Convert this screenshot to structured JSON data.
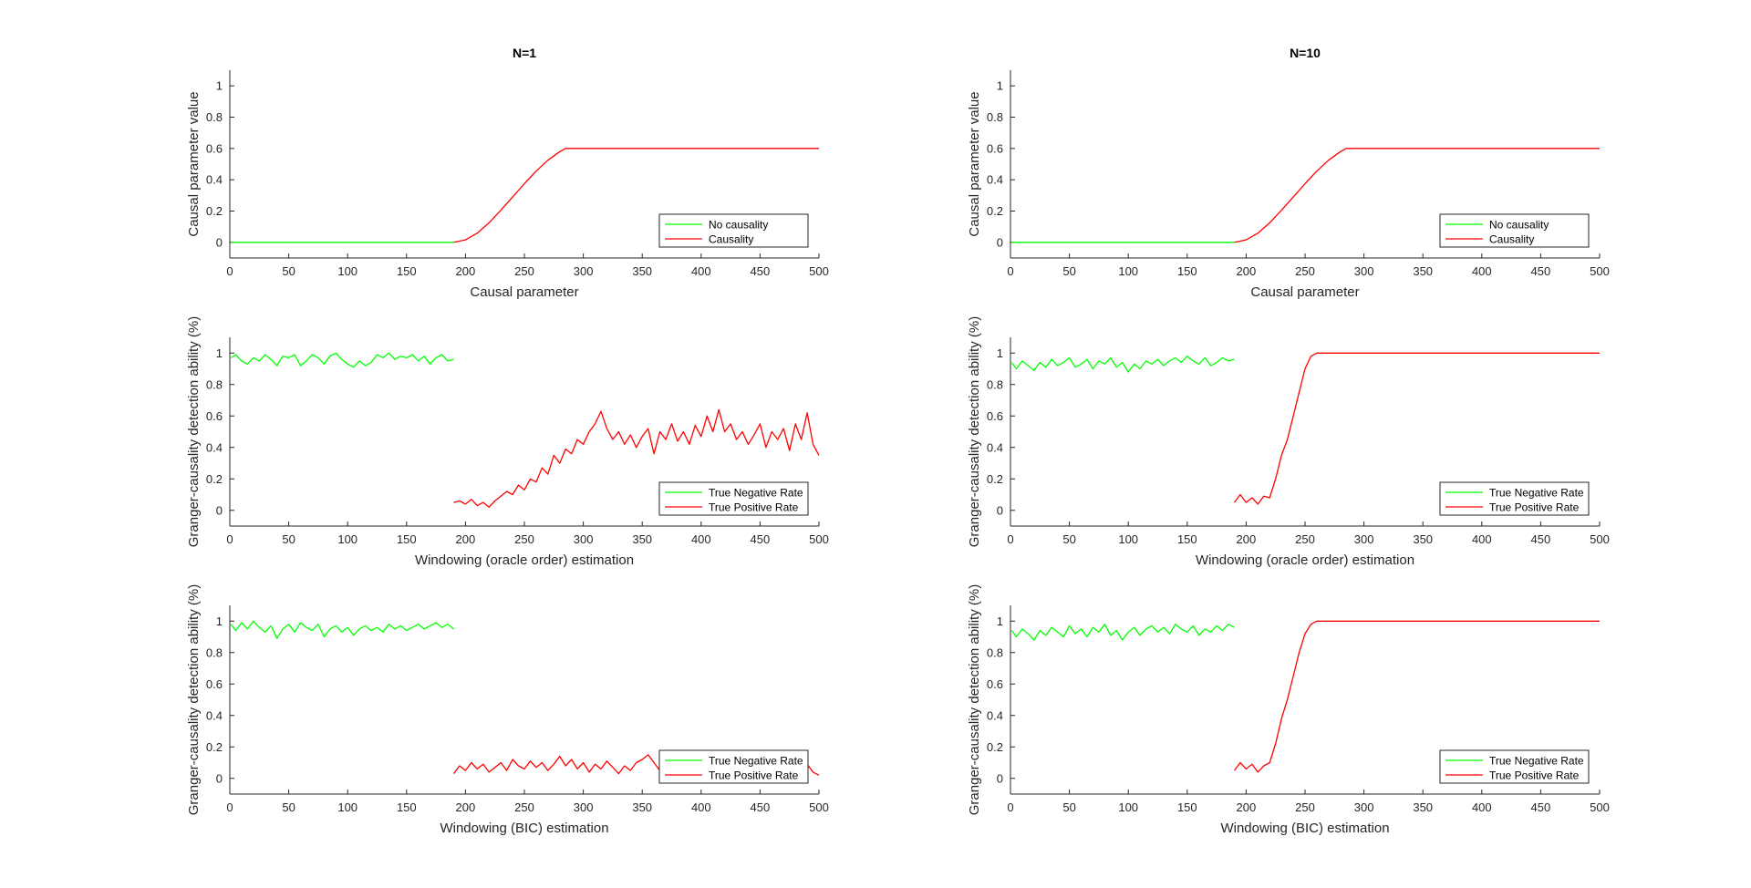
{
  "chart_data": [
    {
      "id": "a1",
      "type": "line",
      "title": "N=1",
      "xlabel": "Causal parameter",
      "ylabel": "Causal parameter value",
      "xlim": [
        0,
        500
      ],
      "ylim": [
        -0.1,
        1.1
      ],
      "xticks": [
        0,
        50,
        100,
        150,
        200,
        250,
        300,
        350,
        400,
        450,
        500
      ],
      "yticks": [
        0,
        0.2,
        0.4,
        0.6,
        0.8,
        1
      ],
      "legend_placement": "bottom-right",
      "grid": false,
      "series": [
        {
          "name": "No causality",
          "color": "#00ff00",
          "x": [
            1,
            50,
            100,
            150,
            190
          ],
          "y": [
            0,
            0,
            0,
            0,
            0
          ]
        },
        {
          "name": "Causality",
          "color": "#ff0000",
          "x": [
            190,
            200,
            210,
            220,
            230,
            240,
            250,
            260,
            270,
            280,
            285,
            300,
            350,
            400,
            450,
            500
          ],
          "y": [
            0,
            0.016,
            0.059,
            0.125,
            0.205,
            0.29,
            0.375,
            0.455,
            0.525,
            0.58,
            0.6,
            0.6,
            0.6,
            0.6,
            0.6,
            0.6
          ]
        }
      ]
    },
    {
      "id": "b1",
      "type": "line",
      "title": "N=10",
      "xlabel": "Causal parameter",
      "ylabel": "Causal parameter value",
      "xlim": [
        0,
        500
      ],
      "ylim": [
        -0.1,
        1.1
      ],
      "xticks": [
        0,
        50,
        100,
        150,
        200,
        250,
        300,
        350,
        400,
        450,
        500
      ],
      "yticks": [
        0,
        0.2,
        0.4,
        0.6,
        0.8,
        1
      ],
      "legend_placement": "bottom-right",
      "grid": false,
      "series": [
        {
          "name": "No causality",
          "color": "#00ff00",
          "x": [
            1,
            50,
            100,
            150,
            190
          ],
          "y": [
            0,
            0,
            0,
            0,
            0
          ]
        },
        {
          "name": "Causality",
          "color": "#ff0000",
          "x": [
            190,
            200,
            210,
            220,
            230,
            240,
            250,
            260,
            270,
            280,
            285,
            300,
            350,
            400,
            450,
            500
          ],
          "y": [
            0,
            0.016,
            0.059,
            0.125,
            0.205,
            0.29,
            0.375,
            0.455,
            0.525,
            0.58,
            0.6,
            0.6,
            0.6,
            0.6,
            0.6,
            0.6
          ]
        }
      ]
    },
    {
      "id": "a2",
      "type": "line",
      "title": "",
      "xlabel": "Windowing (oracle order) estimation",
      "ylabel": "Granger-causality detection ability (%)",
      "xlim": [
        0,
        500
      ],
      "ylim": [
        -0.1,
        1.1
      ],
      "xticks": [
        0,
        50,
        100,
        150,
        200,
        250,
        300,
        350,
        400,
        450,
        500
      ],
      "yticks": [
        0,
        0.2,
        0.4,
        0.6,
        0.8,
        1
      ],
      "legend_placement": "bottom-right",
      "grid": false,
      "series": [
        {
          "name": "True Negative Rate",
          "color": "#00ff00",
          "x": [
            1,
            5,
            10,
            15,
            20,
            25,
            30,
            35,
            40,
            45,
            50,
            55,
            60,
            65,
            70,
            75,
            80,
            85,
            90,
            95,
            100,
            105,
            110,
            115,
            120,
            125,
            130,
            135,
            140,
            145,
            150,
            155,
            160,
            165,
            170,
            175,
            180,
            185,
            190
          ],
          "y": [
            0.97,
            0.99,
            0.95,
            0.93,
            0.97,
            0.95,
            0.99,
            0.96,
            0.92,
            0.98,
            0.97,
            0.99,
            0.92,
            0.95,
            0.99,
            0.97,
            0.93,
            0.98,
            1.0,
            0.96,
            0.93,
            0.91,
            0.95,
            0.92,
            0.94,
            0.99,
            0.97,
            1.0,
            0.96,
            0.98,
            0.97,
            0.99,
            0.95,
            0.98,
            0.93,
            0.97,
            0.99,
            0.95,
            0.96
          ]
        },
        {
          "name": "True Positive Rate",
          "color": "#ff0000",
          "x": [
            190,
            195,
            200,
            205,
            210,
            215,
            220,
            225,
            230,
            235,
            240,
            245,
            250,
            255,
            260,
            265,
            270,
            275,
            280,
            285,
            290,
            295,
            300,
            305,
            310,
            315,
            320,
            325,
            330,
            335,
            340,
            345,
            350,
            355,
            360,
            365,
            370,
            375,
            380,
            385,
            390,
            395,
            400,
            405,
            410,
            415,
            420,
            425,
            430,
            435,
            440,
            445,
            450,
            455,
            460,
            465,
            470,
            475,
            480,
            485,
            490,
            495,
            500
          ],
          "y": [
            0.05,
            0.06,
            0.04,
            0.07,
            0.03,
            0.05,
            0.02,
            0.06,
            0.09,
            0.12,
            0.1,
            0.16,
            0.13,
            0.2,
            0.18,
            0.27,
            0.23,
            0.35,
            0.3,
            0.39,
            0.36,
            0.45,
            0.42,
            0.5,
            0.55,
            0.63,
            0.52,
            0.45,
            0.5,
            0.42,
            0.48,
            0.4,
            0.47,
            0.52,
            0.36,
            0.5,
            0.45,
            0.55,
            0.44,
            0.5,
            0.42,
            0.54,
            0.47,
            0.6,
            0.5,
            0.64,
            0.5,
            0.55,
            0.45,
            0.5,
            0.42,
            0.48,
            0.55,
            0.4,
            0.5,
            0.45,
            0.52,
            0.38,
            0.55,
            0.45,
            0.62,
            0.42,
            0.35
          ]
        }
      ]
    },
    {
      "id": "b2",
      "type": "line",
      "title": "",
      "xlabel": "Windowing (oracle order) estimation",
      "ylabel": "Granger-causality detection ability (%)",
      "xlim": [
        0,
        500
      ],
      "ylim": [
        -0.1,
        1.1
      ],
      "xticks": [
        0,
        50,
        100,
        150,
        200,
        250,
        300,
        350,
        400,
        450,
        500
      ],
      "yticks": [
        0,
        0.2,
        0.4,
        0.6,
        0.8,
        1
      ],
      "legend_placement": "bottom-right",
      "grid": false,
      "series": [
        {
          "name": "True Negative Rate",
          "color": "#00ff00",
          "x": [
            1,
            5,
            10,
            15,
            20,
            25,
            30,
            35,
            40,
            45,
            50,
            55,
            60,
            65,
            70,
            75,
            80,
            85,
            90,
            95,
            100,
            105,
            110,
            115,
            120,
            125,
            130,
            135,
            140,
            145,
            150,
            155,
            160,
            165,
            170,
            175,
            180,
            185,
            190
          ],
          "y": [
            0.94,
            0.9,
            0.95,
            0.92,
            0.89,
            0.94,
            0.91,
            0.96,
            0.92,
            0.94,
            0.97,
            0.91,
            0.93,
            0.96,
            0.9,
            0.95,
            0.93,
            0.97,
            0.91,
            0.94,
            0.88,
            0.93,
            0.9,
            0.95,
            0.93,
            0.96,
            0.92,
            0.95,
            0.97,
            0.94,
            0.98,
            0.95,
            0.93,
            0.97,
            0.92,
            0.94,
            0.97,
            0.95,
            0.96
          ]
        },
        {
          "name": "True Positive Rate",
          "color": "#ff0000",
          "x": [
            190,
            195,
            200,
            205,
            210,
            215,
            220,
            225,
            230,
            235,
            240,
            245,
            250,
            255,
            260,
            280,
            300,
            350,
            400,
            450,
            500
          ],
          "y": [
            0.05,
            0.1,
            0.05,
            0.08,
            0.04,
            0.09,
            0.08,
            0.2,
            0.35,
            0.45,
            0.6,
            0.75,
            0.9,
            0.98,
            1.0,
            1.0,
            1.0,
            1.0,
            1.0,
            1.0,
            1.0
          ]
        }
      ]
    },
    {
      "id": "a3",
      "type": "line",
      "title": "",
      "xlabel": "Windowing (BIC) estimation",
      "ylabel": "Granger-causality detection ability (%)",
      "xlim": [
        0,
        500
      ],
      "ylim": [
        -0.1,
        1.1
      ],
      "xticks": [
        0,
        50,
        100,
        150,
        200,
        250,
        300,
        350,
        400,
        450,
        500
      ],
      "yticks": [
        0,
        0.2,
        0.4,
        0.6,
        0.8,
        1
      ],
      "legend_placement": "bottom-right",
      "grid": false,
      "series": [
        {
          "name": "True Negative Rate",
          "color": "#00ff00",
          "x": [
            1,
            5,
            10,
            15,
            20,
            25,
            30,
            35,
            40,
            45,
            50,
            55,
            60,
            65,
            70,
            75,
            80,
            85,
            90,
            95,
            100,
            105,
            110,
            115,
            120,
            125,
            130,
            135,
            140,
            145,
            150,
            155,
            160,
            165,
            170,
            175,
            180,
            185,
            190
          ],
          "y": [
            0.98,
            0.94,
            0.99,
            0.95,
            1.0,
            0.96,
            0.93,
            0.97,
            0.89,
            0.95,
            0.98,
            0.93,
            0.99,
            0.96,
            0.94,
            0.98,
            0.9,
            0.95,
            0.97,
            0.93,
            0.96,
            0.91,
            0.95,
            0.97,
            0.94,
            0.96,
            0.93,
            0.98,
            0.95,
            0.97,
            0.94,
            0.96,
            0.98,
            0.95,
            0.97,
            0.99,
            0.96,
            0.98,
            0.95
          ]
        },
        {
          "name": "True Positive Rate",
          "color": "#ff0000",
          "x": [
            190,
            195,
            200,
            205,
            210,
            215,
            220,
            225,
            230,
            235,
            240,
            245,
            250,
            255,
            260,
            265,
            270,
            275,
            280,
            285,
            290,
            295,
            300,
            305,
            310,
            315,
            320,
            325,
            330,
            335,
            340,
            345,
            350,
            355,
            360,
            365,
            370,
            375,
            380,
            385,
            390,
            395,
            400,
            405,
            410,
            415,
            420,
            425,
            430,
            435,
            440,
            445,
            450,
            455,
            460,
            465,
            470,
            475,
            480,
            485,
            490,
            495,
            500
          ],
          "y": [
            0.03,
            0.08,
            0.05,
            0.1,
            0.06,
            0.09,
            0.04,
            0.07,
            0.1,
            0.05,
            0.12,
            0.08,
            0.06,
            0.11,
            0.07,
            0.1,
            0.05,
            0.09,
            0.14,
            0.08,
            0.12,
            0.06,
            0.1,
            0.04,
            0.09,
            0.06,
            0.11,
            0.07,
            0.03,
            0.08,
            0.05,
            0.1,
            0.12,
            0.15,
            0.1,
            0.05,
            0.08,
            0.04,
            0.07,
            0.1,
            0.05,
            0.08,
            0.06,
            0.1,
            0.07,
            0.05,
            0.09,
            0.06,
            0.08,
            0.1,
            0.05,
            0.08,
            0.06,
            0.1,
            0.07,
            0.09,
            0.05,
            0.08,
            0.1,
            0.06,
            0.09,
            0.04,
            0.02
          ]
        }
      ]
    },
    {
      "id": "b3",
      "type": "line",
      "title": "",
      "xlabel": "Windowing (BIC) estimation",
      "ylabel": "Granger-causality detection ability (%)",
      "xlim": [
        0,
        500
      ],
      "ylim": [
        -0.1,
        1.1
      ],
      "xticks": [
        0,
        50,
        100,
        150,
        200,
        250,
        300,
        350,
        400,
        450,
        500
      ],
      "yticks": [
        0,
        0.2,
        0.4,
        0.6,
        0.8,
        1
      ],
      "legend_placement": "bottom-right",
      "grid": false,
      "series": [
        {
          "name": "True Negative Rate",
          "color": "#00ff00",
          "x": [
            1,
            5,
            10,
            15,
            20,
            25,
            30,
            35,
            40,
            45,
            50,
            55,
            60,
            65,
            70,
            75,
            80,
            85,
            90,
            95,
            100,
            105,
            110,
            115,
            120,
            125,
            130,
            135,
            140,
            145,
            150,
            155,
            160,
            165,
            170,
            175,
            180,
            185,
            190
          ],
          "y": [
            0.94,
            0.9,
            0.95,
            0.92,
            0.88,
            0.94,
            0.91,
            0.96,
            0.93,
            0.9,
            0.97,
            0.92,
            0.95,
            0.9,
            0.96,
            0.93,
            0.98,
            0.91,
            0.94,
            0.88,
            0.93,
            0.96,
            0.91,
            0.95,
            0.97,
            0.93,
            0.96,
            0.92,
            0.98,
            0.95,
            0.93,
            0.97,
            0.91,
            0.95,
            0.93,
            0.97,
            0.94,
            0.98,
            0.96
          ]
        },
        {
          "name": "True Positive Rate",
          "color": "#ff0000",
          "x": [
            190,
            195,
            200,
            205,
            210,
            215,
            220,
            225,
            230,
            235,
            240,
            245,
            250,
            255,
            260,
            280,
            300,
            350,
            400,
            450,
            500
          ],
          "y": [
            0.05,
            0.1,
            0.06,
            0.09,
            0.04,
            0.08,
            0.1,
            0.22,
            0.38,
            0.5,
            0.65,
            0.8,
            0.92,
            0.98,
            1.0,
            1.0,
            1.0,
            1.0,
            1.0,
            1.0,
            1.0
          ]
        }
      ]
    }
  ]
}
